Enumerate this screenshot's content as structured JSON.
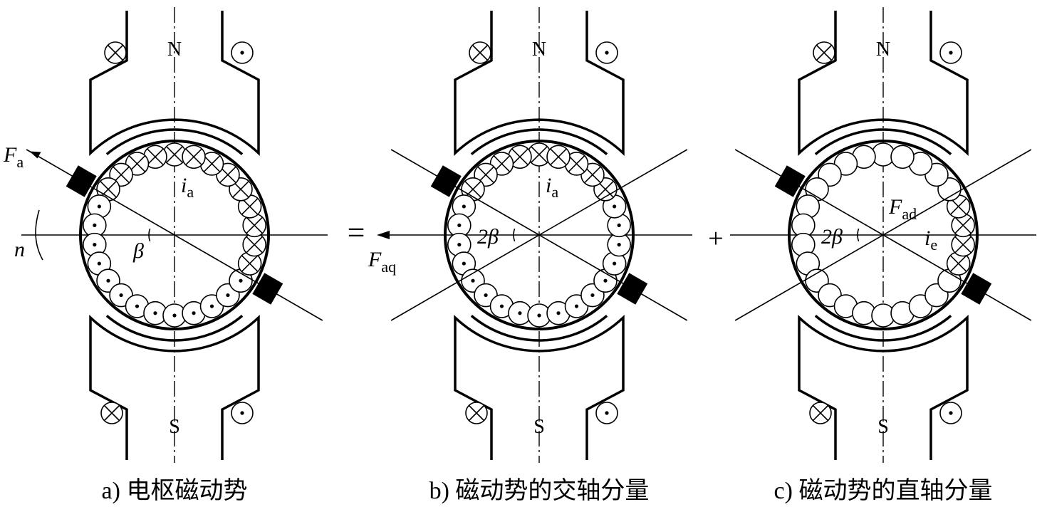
{
  "panels": [
    {
      "id": "a",
      "caption": "a) 电枢磁动势",
      "pole_n": "N",
      "pole_s": "S",
      "current_label": {
        "main": "i",
        "sub": "a"
      },
      "force_label": {
        "main": "F",
        "sub": "a"
      },
      "angle_label": "β",
      "speed_label": "n",
      "conductors": "armature"
    },
    {
      "id": "b",
      "caption": "b) 磁动势的交轴分量",
      "pole_n": "N",
      "pole_s": "S",
      "current_label": {
        "main": "i",
        "sub": "a"
      },
      "force_label": {
        "main": "F",
        "sub": "aq"
      },
      "angle_label": "2β",
      "conductors": "quadrature"
    },
    {
      "id": "c",
      "caption": "c) 磁动势的直轴分量",
      "pole_n": "N",
      "pole_s": "S",
      "current_label": {
        "main": "i",
        "sub": "e"
      },
      "force_label": {
        "main": "F",
        "sub": "ad"
      },
      "angle_label": "2β",
      "conductors": "direct"
    }
  ],
  "operators": [
    "=",
    "+"
  ],
  "icons": {
    "into_page": "cross-circle-icon",
    "out_of_page": "dot-circle-icon"
  }
}
